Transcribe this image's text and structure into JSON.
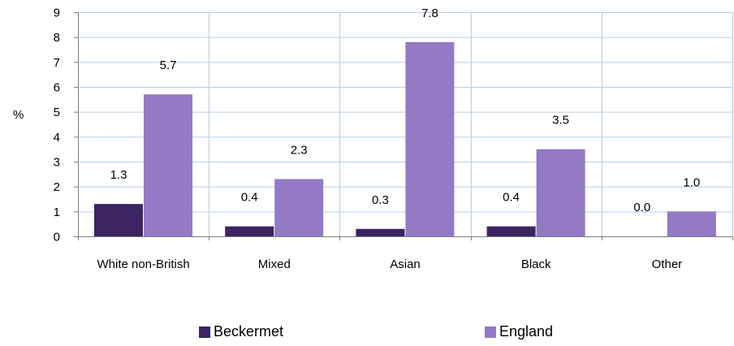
{
  "chart_data": {
    "type": "bar",
    "title": "",
    "xlabel": "",
    "ylabel": "%",
    "ylim": [
      0,
      9
    ],
    "yticks": [
      "0",
      "1",
      "2",
      "3",
      "4",
      "5",
      "6",
      "7",
      "8",
      "9"
    ],
    "categories": [
      "White non-British",
      "Mixed",
      "Asian",
      "Black",
      "Other"
    ],
    "series": [
      {
        "name": "Beckermet",
        "color": "#3c2462",
        "values": [
          1.3,
          0.4,
          0.3,
          0.4,
          0.0
        ],
        "labels": [
          "1.3",
          "0.4",
          "0.3",
          "0.4",
          "0.0"
        ]
      },
      {
        "name": "England",
        "color": "#9479c5",
        "values": [
          5.7,
          2.3,
          7.8,
          3.5,
          1.0
        ],
        "labels": [
          "5.7",
          "2.3",
          "7.8",
          "3.5",
          "1.0"
        ]
      }
    ],
    "grid": true,
    "legend_position": "bottom",
    "grid_color": "#b7cde0"
  }
}
